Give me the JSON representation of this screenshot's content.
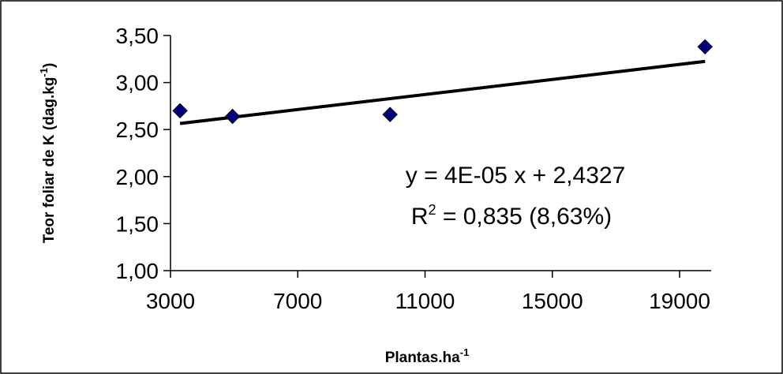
{
  "chart_data": {
    "type": "scatter",
    "title": "",
    "xlabel": "Plantas.ha",
    "xlabel_superscript": "-1",
    "ylabel": "Teor foliar de K (dag.kg",
    "ylabel_superscript": "-1",
    "ylabel_suffix": ")",
    "xlim": [
      3000,
      19000
    ],
    "ylim": [
      1.0,
      3.5
    ],
    "xticks": [
      3000,
      7000,
      11000,
      15000,
      19000
    ],
    "xtick_labels": [
      "3000",
      "7000",
      "11000",
      "15000",
      "19000"
    ],
    "yticks": [
      1.0,
      1.5,
      2.0,
      2.5,
      3.0,
      3.5
    ],
    "ytick_labels": [
      "1,00",
      "1,50",
      "2,00",
      "2,50",
      "3,00",
      "3,50"
    ],
    "grid": false,
    "legend": "none",
    "series": [
      {
        "marker": "diamond",
        "color": "#00007f",
        "points": [
          {
            "x": 3300,
            "y": 2.7
          },
          {
            "x": 4950,
            "y": 2.64
          },
          {
            "x": 9900,
            "y": 2.66
          },
          {
            "x": 19800,
            "y": 3.38
          }
        ]
      }
    ],
    "trendline": {
      "color": "#000000",
      "x_start": 3300,
      "x_end": 19800,
      "slope": 4e-05,
      "intercept": 2.4327
    },
    "annotations": {
      "equation": "y = 4E-05 x + 2,4327",
      "r2_prefix": "R",
      "r2_superscript": "2",
      "r2_rest": " = 0,835 (8,63%)"
    }
  }
}
